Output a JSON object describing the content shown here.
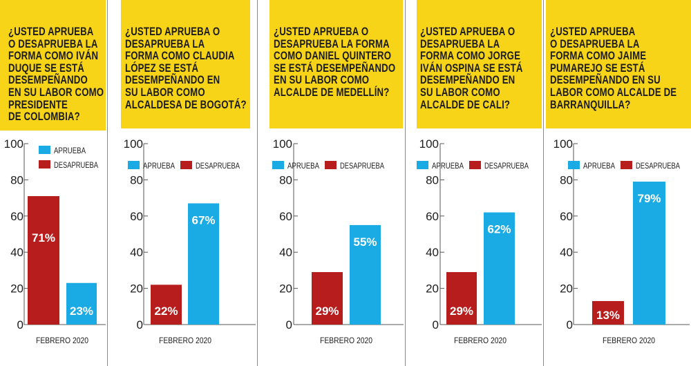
{
  "colors": {
    "aprueba": "#1aabe4",
    "desaprueba": "#b81d1e",
    "header": "#f7d417"
  },
  "chart_data": [
    {
      "type": "bar",
      "title": "¿USTED APRUEBA O DESAPRUEBA LA FORMA COMO IVÁN DUQUE SE ESTÁ DESEMPEÑANDO EN SU LABOR COMO PRESIDENTE DE COLOMBIA?",
      "title_lines": [
        "¿USTED APRUEBA",
        "O DESAPRUEBA LA",
        "FORMA COMO IVÁN",
        "DUQUE SE ESTÁ",
        "DESEMPEÑANDO",
        "EN SU LABOR COMO",
        "PRESIDENTE",
        "DE COLOMBIA?"
      ],
      "categories": [
        "FEBRERO 2020"
      ],
      "series": [
        {
          "name": "APRUEBA",
          "values": [
            23
          ],
          "labels": [
            "23%"
          ]
        },
        {
          "name": "DESAPRUEBA",
          "values": [
            71
          ],
          "labels": [
            "71%"
          ]
        }
      ],
      "ylim": [
        0,
        100
      ],
      "yticks": [
        "0",
        "20",
        "40",
        "60",
        "80",
        "100"
      ],
      "legend": "stacked"
    },
    {
      "type": "bar",
      "title": "¿USTED APRUEBA O DESAPRUEBA LA FORMA COMO CLAUDIA LÓPEZ SE ESTÁ DESEMPEÑANDO EN SU LABOR COMO ALCALDESA DE BOGOTÁ?",
      "title_lines": [
        "¿USTED APRUEBA O",
        "DESAPRUEBA LA",
        "FORMA COMO CLAUDIA",
        "LÓPEZ SE ESTÁ",
        "DESEMPEÑANDO EN",
        "SU LABOR COMO",
        "ALCALDESA DE BOGOTÁ?"
      ],
      "categories": [
        "FEBRERO 2020"
      ],
      "series": [
        {
          "name": "APRUEBA",
          "values": [
            67
          ],
          "labels": [
            "67%"
          ]
        },
        {
          "name": "DESAPRUEBA",
          "values": [
            22
          ],
          "labels": [
            "22%"
          ]
        }
      ],
      "ylim": [
        0,
        100
      ],
      "yticks": [
        "0",
        "20",
        "40",
        "60",
        "80",
        "100"
      ],
      "legend": "inline"
    },
    {
      "type": "bar",
      "title": "¿USTED APRUEBA O DESAPRUEBA LA FORMA COMO DANIEL QUINTERO SE ESTÁ DESEMPEÑANDO EN SU LABOR COMO ALCALDE DE MEDELLÍN?",
      "title_lines": [
        "¿USTED APRUEBA O",
        "DESAPRUEBA LA FORMA",
        "COMO DANIEL QUINTERO",
        "SE ESTÁ DESEMPEÑANDO",
        "EN SU LABOR COMO",
        "ALCALDE DE MEDELLÍN?"
      ],
      "categories": [
        "FEBRERO 2020"
      ],
      "series": [
        {
          "name": "APRUEBA",
          "values": [
            55
          ],
          "labels": [
            "55%"
          ]
        },
        {
          "name": "DESAPRUEBA",
          "values": [
            29
          ],
          "labels": [
            "29%"
          ]
        }
      ],
      "ylim": [
        0,
        100
      ],
      "yticks": [
        "0",
        "20",
        "40",
        "60",
        "80",
        "100"
      ],
      "legend": "inline"
    },
    {
      "type": "bar",
      "title": "¿USTED APRUEBA O DESAPRUEBA LA FORMA COMO JORGE IVÁN OSPINA SE ESTÁ DESEMPEÑANDO EN SU LABOR COMO ALCALDE DE CALI?",
      "title_lines": [
        "¿USTED APRUEBA O",
        "DESAPRUEBA LA",
        "FORMA COMO JORGE",
        "IVÁN OSPINA SE ESTÁ",
        "DESEMPEÑANDO EN",
        "SU LABOR COMO",
        "ALCALDE DE CALI?"
      ],
      "categories": [
        "FEBRERO 2020"
      ],
      "series": [
        {
          "name": "APRUEBA",
          "values": [
            62
          ],
          "labels": [
            "62%"
          ]
        },
        {
          "name": "DESAPRUEBA",
          "values": [
            29
          ],
          "labels": [
            "29%"
          ]
        }
      ],
      "ylim": [
        0,
        100
      ],
      "yticks": [
        "0",
        "20",
        "40",
        "60",
        "80",
        "100"
      ],
      "legend": "inline"
    },
    {
      "type": "bar",
      "title": "¿USTED APRUEBA O DESAPRUEBA LA FORMA COMO JAIME PUMAREJO SE ESTÁ DESEMPEÑANDO EN SU LABOR COMO ALCALDE DE BARRANQUILLA?",
      "title_lines": [
        "¿USTED APRUEBA",
        "O DESAPRUEBA LA",
        "FORMA COMO JAIME",
        "PUMAREJO SE ESTÁ",
        "DESEMPEÑANDO EN SU",
        "LABOR COMO ALCALDE DE",
        "BARRANQUILLA?"
      ],
      "categories": [
        "FEBRERO 2020"
      ],
      "series": [
        {
          "name": "APRUEBA",
          "values": [
            79
          ],
          "labels": [
            "79%"
          ]
        },
        {
          "name": "DESAPRUEBA",
          "values": [
            13
          ],
          "labels": [
            "13%"
          ]
        }
      ],
      "ylim": [
        0,
        100
      ],
      "yticks": [
        "0",
        "20",
        "40",
        "60",
        "80",
        "100"
      ],
      "legend": "inline"
    }
  ]
}
